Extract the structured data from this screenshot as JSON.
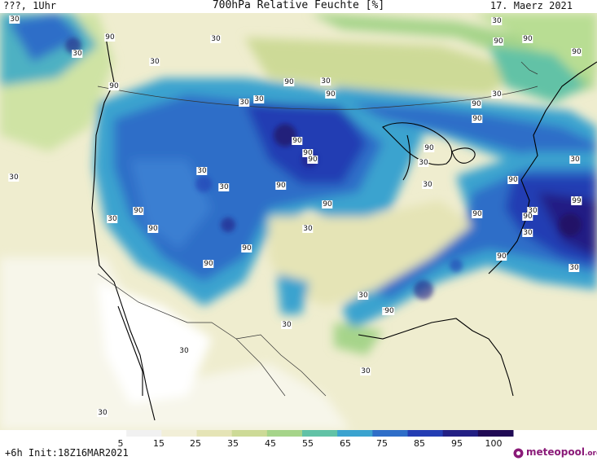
{
  "header": {
    "left_text": "???, 1Uhr",
    "title": "700hPa Relative Feuchte [%]",
    "date": "17. Maerz 2021"
  },
  "footer": {
    "run_info": "+6h  Init:18Z16MAR2021",
    "brand": "meteopool",
    "brand_suffix": ".org"
  },
  "colorbar": {
    "ticks": [
      "5",
      "15",
      "25",
      "35",
      "45",
      "55",
      "65",
      "75",
      "85",
      "95",
      "100"
    ],
    "colors": [
      "#ffffff",
      "#f1f1f1",
      "#f2efd8",
      "#e5e4b6",
      "#cdda97",
      "#a6d48a",
      "#62c2a6",
      "#3ba3cf",
      "#2f6ec8",
      "#243db3",
      "#231f84",
      "#200a55"
    ]
  },
  "map_labels": [
    "30",
    "90",
    "90",
    "30",
    "30",
    "90",
    "30",
    "30",
    "90",
    "90",
    "90",
    "30",
    "30",
    "90",
    "90",
    "90",
    "30",
    "30",
    "90",
    "90",
    "90",
    "90",
    "90",
    "90",
    "30",
    "30",
    "30",
    "90",
    "30",
    "30",
    "90",
    "30",
    "90",
    "90",
    "99",
    "90",
    "30",
    "90",
    "30",
    "30",
    "30",
    "30",
    "30",
    "90",
    "90",
    "30",
    "90",
    "30",
    "90",
    "90",
    "30",
    "30"
  ]
}
